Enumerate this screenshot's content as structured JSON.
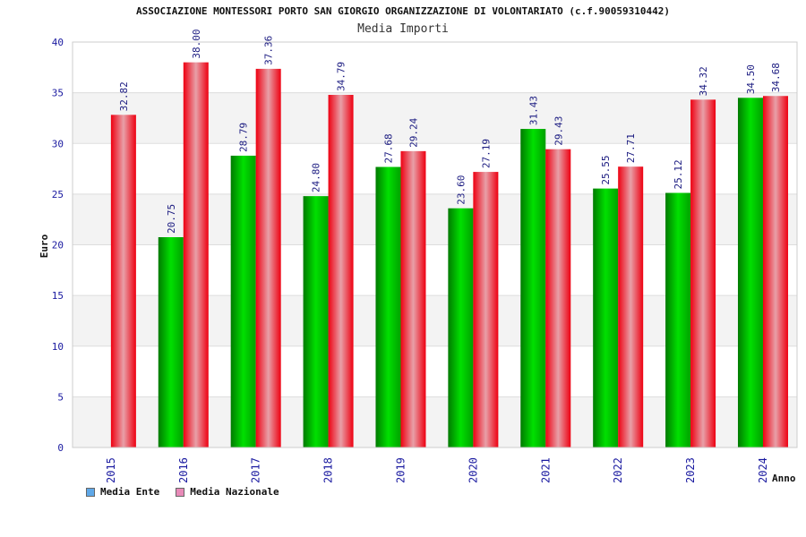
{
  "title": "ASSOCIAZIONE MONTESSORI PORTO SAN GIORGIO ORGANIZZAZIONE DI VOLONTARIATO (c.f.90059310442)",
  "subtitle": "Media Importi",
  "legend": [
    {
      "label": "Media Ente",
      "color": "#5fa8e8"
    },
    {
      "label": "Media Nazionale",
      "color": "#e88ab8"
    }
  ],
  "chart_data": {
    "type": "bar",
    "title": "Media Importi",
    "xlabel": "Anno",
    "ylabel": "Euro",
    "ylim": [
      0,
      40
    ],
    "yticks": [
      0,
      5,
      10,
      15,
      20,
      25,
      30,
      35,
      40
    ],
    "categories": [
      "2015",
      "2016",
      "2017",
      "2018",
      "2019",
      "2020",
      "2021",
      "2022",
      "2023",
      "2024"
    ],
    "grid": true,
    "legend_position": "bottom-left",
    "series": [
      {
        "name": "Media Ente",
        "color": "#00bb00",
        "values": [
          null,
          20.75,
          28.79,
          24.8,
          27.68,
          23.6,
          31.43,
          25.55,
          25.12,
          34.5
        ],
        "labels": [
          "",
          "20.75",
          "28.79",
          "24.80",
          "27.68",
          "23.60",
          "31.43",
          "25.55",
          "25.12",
          "34.50"
        ]
      },
      {
        "name": "Media Nazionale",
        "color": "#ee1122",
        "values": [
          32.82,
          38.0,
          37.36,
          34.79,
          29.24,
          27.19,
          29.43,
          27.71,
          34.32,
          34.68
        ],
        "labels": [
          "32.82",
          "38.00",
          "37.36",
          "34.79",
          "29.24",
          "27.19",
          "29.43",
          "27.71",
          "34.32",
          "34.68"
        ]
      }
    ]
  }
}
